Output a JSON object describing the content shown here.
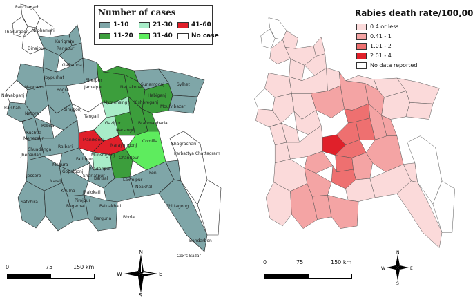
{
  "left_map": {
    "legend": {
      "title": "Number of cases",
      "items": [
        {
          "label": "1-10",
          "color": "#7fa6a8"
        },
        {
          "label": "21-30",
          "color": "#a8ecc8"
        },
        {
          "label": "41-60",
          "color": "#e0202a"
        },
        {
          "label": "11-20",
          "color": "#3c9e3c"
        },
        {
          "label": "31-40",
          "color": "#5eec5e"
        },
        {
          "label": "No case",
          "color": "#ffffff"
        }
      ]
    },
    "district_labels": [
      "Panchagarh",
      "Thakurgaon",
      "Nilphamari",
      "Kurigram",
      "Dinajpur",
      "Rangpur",
      "Gaibanda",
      "Joypurhat",
      "Naogaon",
      "Bogra",
      "Jamalpur",
      "Sherpur",
      "Netrakona",
      "Sunamgonj",
      "Sylhet",
      "Nawabganj",
      "Rajshahi",
      "Natore",
      "Sirajgonj",
      "Tangail",
      "Mymensingh",
      "Kishoreganj",
      "Moulvibazar",
      "Habiganj",
      "Pabna",
      "Gazipur",
      "Brahmanbaria",
      "Meherpur",
      "Kushtia",
      "Manikgonj",
      "Narsingdi",
      "Narayangonj",
      "Comilla",
      "Chuadanga",
      "Jhenaidah",
      "Rajbari",
      "Faridpur",
      "Munshiganj",
      "Chandpur",
      "Khagrachari",
      "Jessore",
      "Gopalgonj",
      "Madaripur",
      "Shariatpur",
      "Feni",
      "Laxmipur",
      "Noakhali",
      "Parbattya Chattagram",
      "Khulna",
      "Narail",
      "Magura",
      "Barisal",
      "Jhalokati",
      "Pirojpur",
      "Satkhira",
      "Bagerhat",
      "Patuakhali",
      "Barguna",
      "Bhola",
      "Chittagong",
      "Bandarbon",
      "Cox's Bazar"
    ],
    "scale": {
      "ticks": [
        "0",
        "75",
        "150 km"
      ]
    },
    "north_arrow": {
      "n": "N",
      "s": "S",
      "e": "E",
      "w": "W"
    }
  },
  "right_map": {
    "legend": {
      "title": "Rabies death rate/100,000",
      "items": [
        {
          "label": "0.4 or less",
          "color": "#fbdada"
        },
        {
          "label": "0.41 - 1",
          "color": "#f4a4a4"
        },
        {
          "label": "1.01 - 2",
          "color": "#ee7070"
        },
        {
          "label": "2.01 - 4",
          "color": "#e0202a"
        },
        {
          "label": "No data reported",
          "color": "#ffffff"
        }
      ]
    },
    "scale": {
      "ticks": [
        "0",
        "75",
        "150 km"
      ]
    },
    "north_arrow": {
      "n": "N",
      "s": "S",
      "e": "E",
      "w": "W"
    }
  }
}
